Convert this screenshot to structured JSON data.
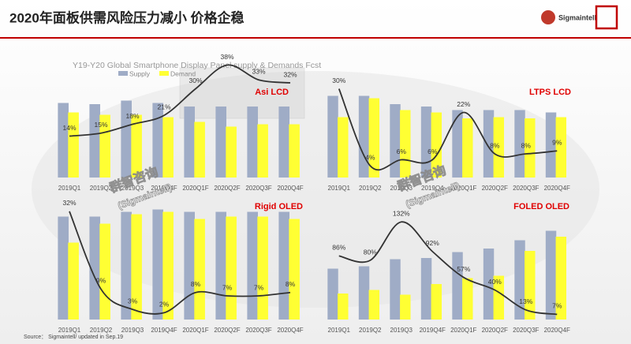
{
  "header": {
    "title": "2020年面板供需风险压力减小 价格企稳",
    "logo": "Sigmaintell"
  },
  "source": "Source： Sigmaintell/ updated in Sep.19",
  "watermark": {
    "cn": "群智咨询",
    "en": "(Sigmaintell)"
  },
  "chart_data": [
    {
      "type": "bar",
      "title": "Asi LCD",
      "subtitle": "Y19-Y20 Global Smartphone Display Panel supply & Demands Fcst",
      "categories": [
        "2019Q1",
        "2019Q2",
        "2019Q3",
        "2019Q4F",
        "2020Q1F",
        "2020Q2F",
        "2020Q3F",
        "2020Q4F"
      ],
      "series": [
        {
          "name": "Supply",
          "color": "#9facc6",
          "values": [
            63,
            62,
            65,
            63,
            60,
            60,
            60,
            60
          ]
        },
        {
          "name": "Demand",
          "color": "#ffff33",
          "values": [
            55,
            53,
            53,
            51,
            47,
            43,
            45,
            45
          ]
        },
        {
          "type": "line",
          "axis": "y2",
          "color": "#333333",
          "values": [
            14,
            15,
            18,
            21,
            30,
            38,
            33,
            32
          ],
          "value_labels": [
            "14%",
            "15%",
            "18%",
            "21%",
            "30%",
            "38%",
            "33%",
            "32%"
          ]
        }
      ],
      "ylim": [
        0,
        100
      ],
      "y2lim": [
        0,
        40
      ]
    },
    {
      "type": "bar",
      "title": "LTPS LCD",
      "categories": [
        "2019Q1",
        "2019Q2",
        "2019Q3",
        "2019Q4",
        "2020Q1F",
        "2020Q2F",
        "2020Q3F",
        "2020Q4F"
      ],
      "series": [
        {
          "color": "#9facc6",
          "values": [
            69,
            69,
            62,
            60,
            57,
            57,
            57,
            55
          ]
        },
        {
          "color": "#ffff33",
          "values": [
            51,
            67,
            57,
            55,
            50,
            51,
            50,
            51
          ]
        },
        {
          "type": "line",
          "axis": "y2",
          "color": "#333333",
          "values": [
            30,
            4,
            6,
            6,
            22,
            8,
            8,
            9
          ],
          "value_labels": [
            "30%",
            "4%",
            "6%",
            "6%",
            "22%",
            "8%",
            "8%",
            "9%"
          ]
        }
      ],
      "ylim": [
        0,
        100
      ],
      "y2lim": [
        0,
        40
      ]
    },
    {
      "type": "bar",
      "title": "Rigid OLED",
      "categories": [
        "2019Q1",
        "2019Q2",
        "2019Q3",
        "2019Q4F",
        "2020Q1F",
        "2020Q2F",
        "2020Q3F",
        "2020Q4F"
      ],
      "series": [
        {
          "color": "#9facc6",
          "values": [
            87,
            87,
            91,
            93,
            91,
            91,
            91,
            91
          ]
        },
        {
          "color": "#ffff33",
          "values": [
            65,
            81,
            89,
            91,
            85,
            87,
            87,
            85
          ]
        },
        {
          "type": "line",
          "axis": "y2",
          "color": "#333333",
          "values": [
            32,
            9,
            3,
            2,
            8,
            7,
            7,
            8
          ],
          "value_labels": [
            "32%",
            "9%",
            "3%",
            "2%",
            "8%",
            "7%",
            "7%",
            "8%"
          ]
        }
      ],
      "ylim": [
        0,
        100
      ],
      "y2lim": [
        0,
        35
      ]
    },
    {
      "type": "bar",
      "title": "FOLED OLED",
      "categories": [
        "2019Q1",
        "2019Q2",
        "2019Q3",
        "2019Q4F",
        "2020Q1F",
        "2020Q2F",
        "2020Q3F",
        "2020Q4F"
      ],
      "series": [
        {
          "color": "#9facc6",
          "values": [
            43,
            45,
            51,
            52,
            57,
            60,
            67,
            75
          ]
        },
        {
          "color": "#ffff33",
          "values": [
            22,
            25,
            21,
            30,
            35,
            37,
            58,
            70
          ]
        },
        {
          "type": "line",
          "axis": "y2",
          "color": "#333333",
          "values": [
            86,
            80,
            132,
            92,
            57,
            40,
            13,
            7
          ],
          "value_labels": [
            "86%",
            "80%",
            "132%",
            "92%",
            "57%",
            "40%",
            "13%",
            "7%"
          ]
        }
      ],
      "ylim": [
        0,
        100
      ],
      "y2lim": [
        0,
        160
      ]
    }
  ]
}
